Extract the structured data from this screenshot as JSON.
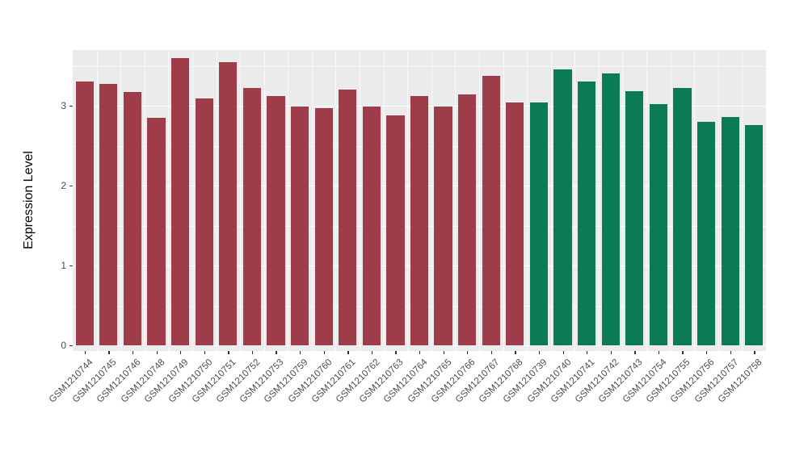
{
  "chart_data": {
    "type": "bar",
    "title": "",
    "xlabel": "",
    "ylabel": "Expression Level",
    "ylim": [
      0,
      3.7
    ],
    "yticks": [
      0,
      1,
      2,
      3
    ],
    "grid": true,
    "legend": "none",
    "panel_bg": "#EBEBEB",
    "grid_color": "#FFFFFF",
    "axis_text_color": "#4D4D4D",
    "tick_mark_color": "#333333",
    "bar_colors": {
      "group1": "#9E3D49",
      "group2": "#0A7B52"
    },
    "categories": [
      "GSM1210744",
      "GSM1210745",
      "GSM1210746",
      "GSM1210748",
      "GSM1210749",
      "GSM1210750",
      "GSM1210751",
      "GSM1210752",
      "GSM1210753",
      "GSM1210759",
      "GSM1210760",
      "GSM1210761",
      "GSM1210762",
      "GSM1210763",
      "GSM1210764",
      "GSM1210765",
      "GSM1210766",
      "GSM1210767",
      "GSM1210768",
      "GSM1210739",
      "GSM1210740",
      "GSM1210741",
      "GSM1210742",
      "GSM1210743",
      "GSM1210754",
      "GSM1210755",
      "GSM1210756",
      "GSM1210757",
      "GSM1210758"
    ],
    "values": [
      3.3,
      3.27,
      3.17,
      2.85,
      3.6,
      3.09,
      3.55,
      3.22,
      3.12,
      2.99,
      2.97,
      3.2,
      2.99,
      2.88,
      3.12,
      2.99,
      3.14,
      3.37,
      3.04,
      3.04,
      3.45,
      3.3,
      3.4,
      3.18,
      3.02,
      3.22,
      2.8,
      2.86,
      2.76
    ],
    "groups": [
      "group1",
      "group1",
      "group1",
      "group1",
      "group1",
      "group1",
      "group1",
      "group1",
      "group1",
      "group1",
      "group1",
      "group1",
      "group1",
      "group1",
      "group1",
      "group1",
      "group1",
      "group1",
      "group1",
      "group2",
      "group2",
      "group2",
      "group2",
      "group2",
      "group2",
      "group2",
      "group2",
      "group2",
      "group2"
    ]
  }
}
